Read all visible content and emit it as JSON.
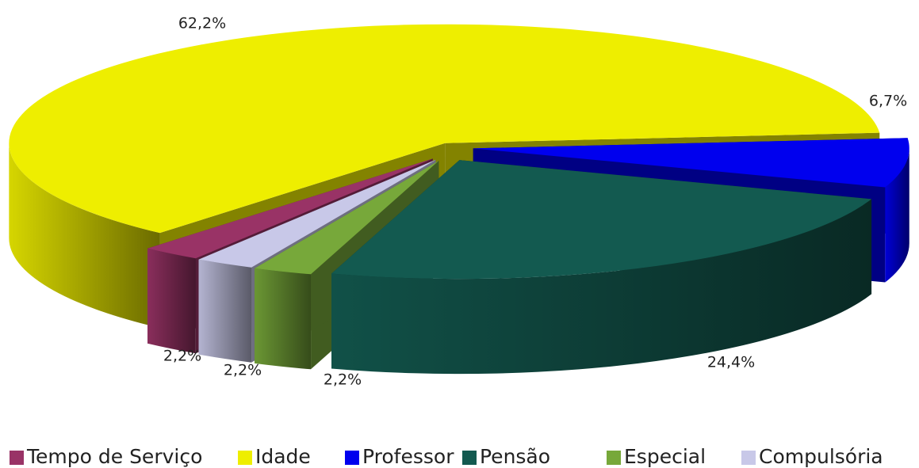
{
  "chart_data": {
    "type": "pie3d",
    "categories": [
      "Tempo de Serviço",
      "Idade",
      "Professor",
      "Pensão",
      "Especial",
      "Compulsória"
    ],
    "values": [
      2.2,
      62.2,
      6.7,
      24.4,
      2.2,
      2.2
    ],
    "value_labels": [
      "2,2%",
      "62,2%",
      "6,7%",
      "24,4%",
      "2,2%",
      "2,2%"
    ],
    "colors": [
      "#993366",
      "#eeee00",
      "#0000ee",
      "#135a50",
      "#77a83a",
      "#c8c8e8"
    ],
    "legend": "bottom"
  }
}
